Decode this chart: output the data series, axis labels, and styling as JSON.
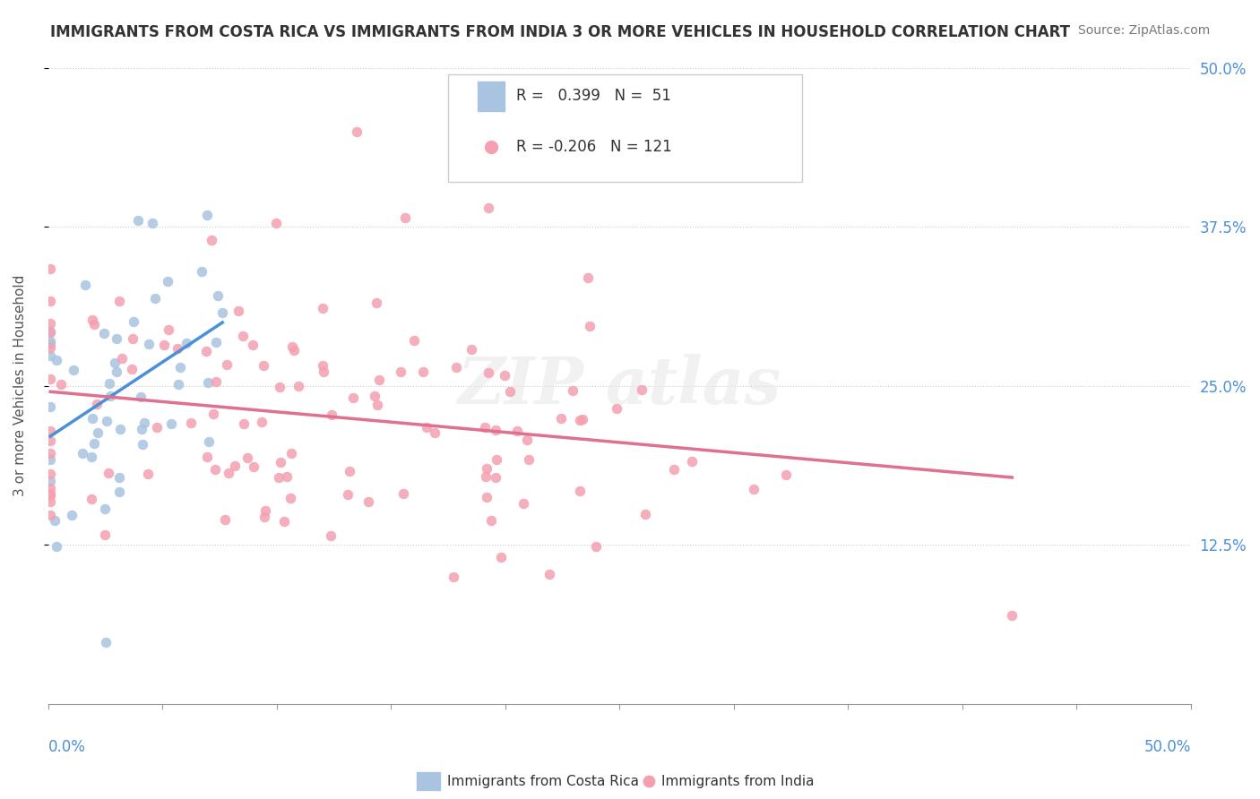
{
  "title": "IMMIGRANTS FROM COSTA RICA VS IMMIGRANTS FROM INDIA 3 OR MORE VEHICLES IN HOUSEHOLD CORRELATION CHART",
  "source": "Source: ZipAtlas.com",
  "ylabel": "3 or more Vehicles in Household",
  "yaxis_labels": [
    "12.5%",
    "25.0%",
    "37.5%",
    "50.0%"
  ],
  "r_costa_rica": 0.399,
  "n_costa_rica": 51,
  "r_india": -0.206,
  "n_india": 121,
  "legend1_label": "Immigrants from Costa Rica",
  "legend2_label": "Immigrants from India",
  "costa_rica_color": "#a8c4e0",
  "india_color": "#f4a0b0",
  "trend_color_cr": "#4a90d9",
  "trend_color_india": "#e07090",
  "background_color": "#ffffff"
}
